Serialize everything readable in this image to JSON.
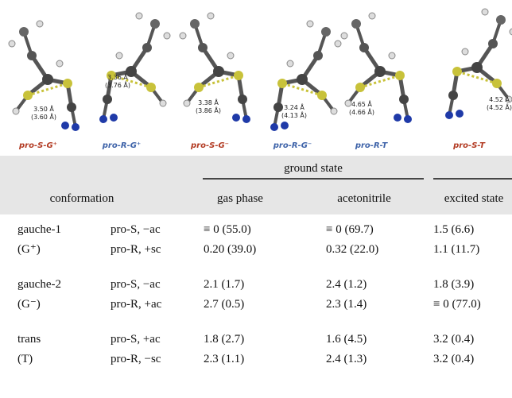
{
  "figure": {
    "panels": [
      {
        "label": "pro-S-G⁺",
        "color": "#b23a22",
        "distance": [
          "3.50 Å",
          "(3.60 Å)"
        ]
      },
      {
        "label": "pro-R-G⁺",
        "color": "#3d62a8",
        "distance": [
          "3.36 Å",
          "(3.76 Å)"
        ]
      },
      {
        "label": "pro-S-G⁻",
        "color": "#b23a22",
        "distance": [
          "3.38 Å",
          "(3.86 Å)"
        ]
      },
      {
        "label": "pro-R-G⁻",
        "color": "#3d62a8",
        "distance": [
          "3.24 Å",
          "(4.13 Å)"
        ]
      },
      {
        "label": "pro-R-T",
        "color": "#3d62a8",
        "distance": [
          "4.65 Å",
          "(4.66 Å)"
        ]
      },
      {
        "label": "pro-S-T",
        "color": "#b23a22",
        "distance": [
          "4.52 Å",
          "(4.52 Å)"
        ]
      }
    ]
  },
  "table": {
    "header": {
      "group": "ground state",
      "columns": [
        "conformation",
        "gas phase",
        "acetonitrile",
        "excited state"
      ]
    },
    "rows": [
      [
        "gauche-1",
        "pro-S, −ac",
        "≡ 0 (55.0)",
        "≡ 0 (69.7)",
        "1.5 (6.6)"
      ],
      [
        "(G⁺)",
        "pro-R, +sc",
        "0.20 (39.0)",
        "0.32 (22.0)",
        "1.1 (11.7)"
      ],
      [
        "gauche-2",
        "pro-S, −ac",
        "2.1 (1.7)",
        "2.4 (1.2)",
        "1.8 (3.9)"
      ],
      [
        "(G⁻)",
        "pro-R, +ac",
        "2.7 (0.5)",
        "2.3 (1.4)",
        "≡ 0 (77.0)"
      ],
      [
        "trans",
        "pro-S, +ac",
        "1.8 (2.7)",
        "1.6 (4.5)",
        "3.2 (0.4)"
      ],
      [
        "(T)",
        "pro-R, −sc",
        "2.3 (1.1)",
        "2.4 (1.3)",
        "3.2 (0.4)"
      ]
    ]
  }
}
